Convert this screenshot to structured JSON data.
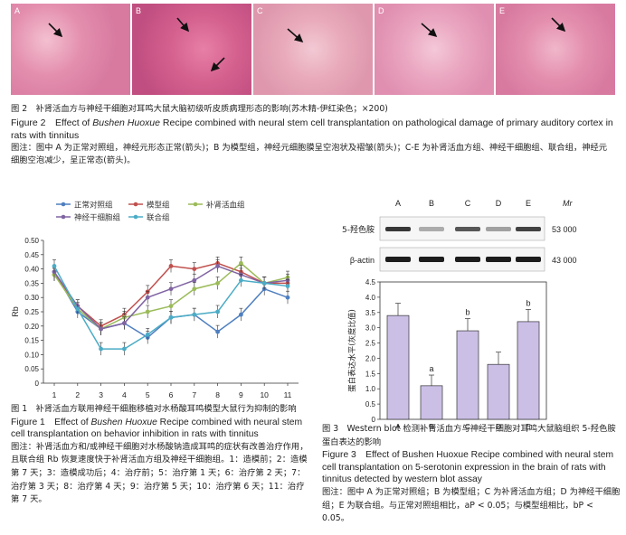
{
  "fig2": {
    "panels": [
      "A",
      "B",
      "C",
      "D",
      "E"
    ],
    "cap_cn": "图 2　补肾活血方与神经干细胞对耳鸣大鼠大脑初级听皮质病理形态的影响(苏木精-伊红染色；×200)",
    "cap_en_prefix": "Figure 2　Effect of ",
    "cap_en_italic": "Bushen Huoxue",
    "cap_en_suffix": " Recipe combined with neural stem cell transplantation on pathological damage of primary auditory cortex in rats with tinnitus",
    "note": "图注：图中 A 为正常对照组，神经元形态正常(箭头)；B 为模型组，神经元细胞膜呈空泡状及褶皱(箭头)；C-E 为补肾活血方组、神经干细胞组、联合组，神经元细胞空泡减少，呈正常态(箭头)。"
  },
  "fig1": {
    "legend": [
      "正常对照组",
      "模型组",
      "补肾活血组",
      "神经干细胞组",
      "联合组"
    ],
    "colors": [
      "#4f7fc0",
      "#c0504d",
      "#9bbb59",
      "#8064a2",
      "#4bacc6"
    ],
    "cap_cn": "图 1　补肾活血方联用神经干细胞移植对水杨酸耳鸣模型大鼠行为抑制的影响",
    "cap_en_prefix": "Figure 1　Effect of ",
    "cap_en_italic": "Bushen Huoxue",
    "cap_en_suffix": " Recipe combined with neural stem cell transplantation on behavior inhibition in rats with tinnitus",
    "note": "图注：补肾活血方和/或神经干细胞对水杨酸钠造成耳鸣的症状有改善治疗作用，且联合组 Rb 恢复速度快于补肾活血方组及神经干细胞组。1：造模前；2：造模第 7 天；3：造模成功后；4：治疗前；5：治疗第 1 天；6：治疗第 2 天；7：治疗第 3 天；8：治疗第 4 天；9：治疗第 5 天；10：治疗第 6 天；11：治疗第 7 天。"
  },
  "fig3": {
    "blot_labels": [
      "A",
      "B",
      "C",
      "D",
      "E"
    ],
    "mr": "Mr",
    "row1": "5-羟色胺",
    "row2": "β-actin",
    "mw1": "53 000",
    "mw2": "43 000",
    "cap_cn": "图 3　Western blot 检测补肾活血方与神经干细胞对耳鸣大鼠脑组织 5-羟色胺蛋白表达的影响",
    "cap_en": "Figure 3　Effect of Bushen Huoxue Recipe combined with neural stem cell transplantation on 5-serotonin expression in the brain of rats with tinnitus detected by western blot assay",
    "note": "图注：图中 A 为正常对照组；B 为模型组；C 为补肾活血方组；D 为神经干细胞组；E 为联合组。与正常对照组相比，aP < 0.05；与模型组相比，bP < 0.05。"
  },
  "chart_data": [
    {
      "type": "line",
      "ylabel": "Rb",
      "ylim": [
        0,
        0.5
      ],
      "yticks": [
        "0",
        "0.05",
        "0.10",
        "0.15",
        "0.20",
        "0.25",
        "0.30",
        "0.35",
        "0.40",
        "0.45",
        "0.50"
      ],
      "x": [
        "1",
        "2",
        "3",
        "4",
        "5",
        "6",
        "7",
        "8",
        "9",
        "10",
        "11"
      ],
      "series": [
        {
          "name": "正常对照组",
          "values": [
            0.39,
            0.25,
            0.19,
            0.21,
            0.16,
            0.23,
            0.24,
            0.18,
            0.24,
            0.33,
            0.3
          ]
        },
        {
          "name": "模型组",
          "values": [
            0.38,
            0.27,
            0.2,
            0.24,
            0.32,
            0.41,
            0.4,
            0.42,
            0.39,
            0.35,
            0.35
          ]
        },
        {
          "name": "补肾活血组",
          "values": [
            0.38,
            0.26,
            0.19,
            0.23,
            0.25,
            0.27,
            0.33,
            0.35,
            0.42,
            0.35,
            0.37
          ]
        },
        {
          "name": "神经干细胞组",
          "values": [
            0.39,
            0.27,
            0.19,
            0.21,
            0.3,
            0.33,
            0.36,
            0.41,
            0.38,
            0.35,
            0.36
          ]
        },
        {
          "name": "联合组",
          "values": [
            0.41,
            0.26,
            0.12,
            0.12,
            0.17,
            0.23,
            0.24,
            0.25,
            0.36,
            0.35,
            0.34
          ]
        }
      ]
    },
    {
      "type": "bar",
      "ylabel": "蛋白表达水平(灰度比值)",
      "ylim": [
        0,
        4.5
      ],
      "yticks": [
        "0",
        "0.5",
        "1.0",
        "1.5",
        "2.0",
        "2.5",
        "3.0",
        "3.5",
        "4.0",
        "4.5"
      ],
      "categories": [
        "A",
        "B",
        "C",
        "D",
        "E"
      ],
      "values": [
        3.4,
        1.1,
        2.9,
        1.8,
        3.2
      ],
      "annotations": [
        "",
        "a",
        "b",
        "",
        "b"
      ]
    }
  ]
}
